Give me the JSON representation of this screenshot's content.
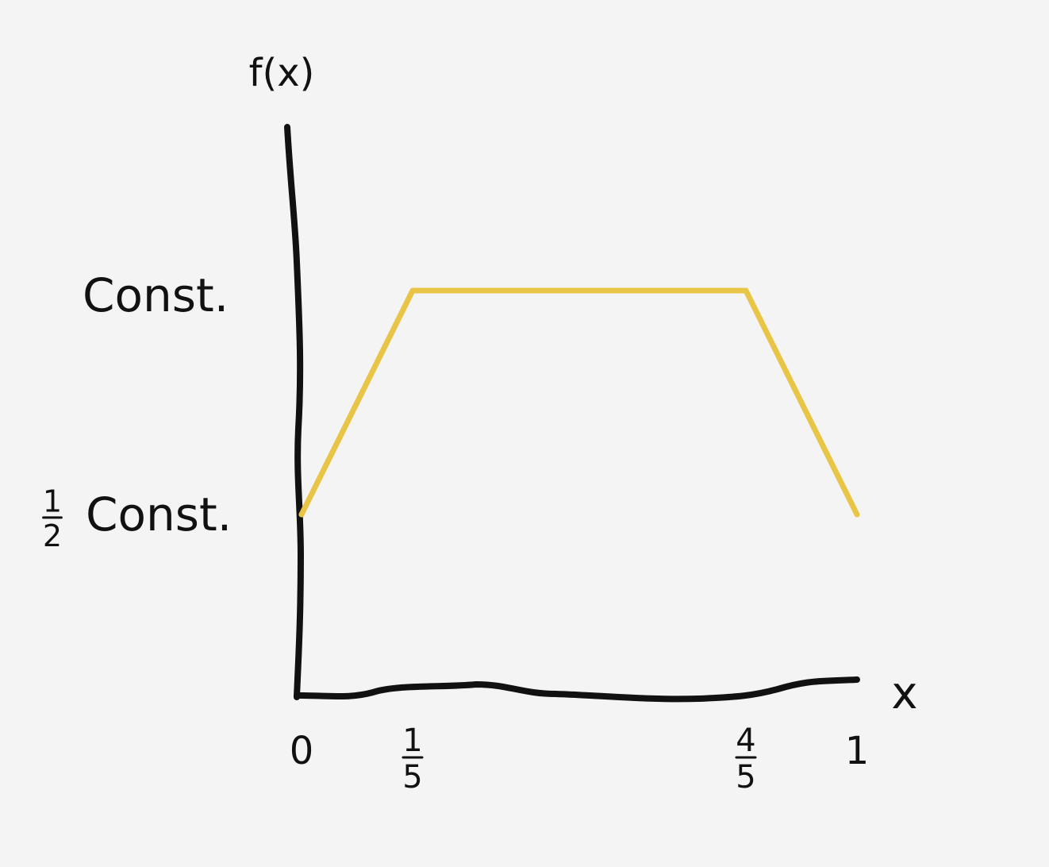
{
  "chart_data": {
    "type": "line",
    "title": "",
    "xlabel": "x",
    "ylabel": "f(x)",
    "xlim": [
      0,
      1
    ],
    "x_ticks": [
      {
        "value": 0,
        "label": "0"
      },
      {
        "value": 0.2,
        "label": "1/5"
      },
      {
        "value": 0.8,
        "label": "4/5"
      },
      {
        "value": 1,
        "label": "1"
      }
    ],
    "y_ticks": [
      {
        "value": 1,
        "label": "Const."
      },
      {
        "value": 0.5,
        "label": "1/2 Const."
      }
    ],
    "series": [
      {
        "color": "#e8c547",
        "x": [
          0,
          0.2,
          0.8,
          1
        ],
        "y": [
          0.5,
          1,
          1,
          0.5
        ]
      }
    ],
    "grid": false
  }
}
